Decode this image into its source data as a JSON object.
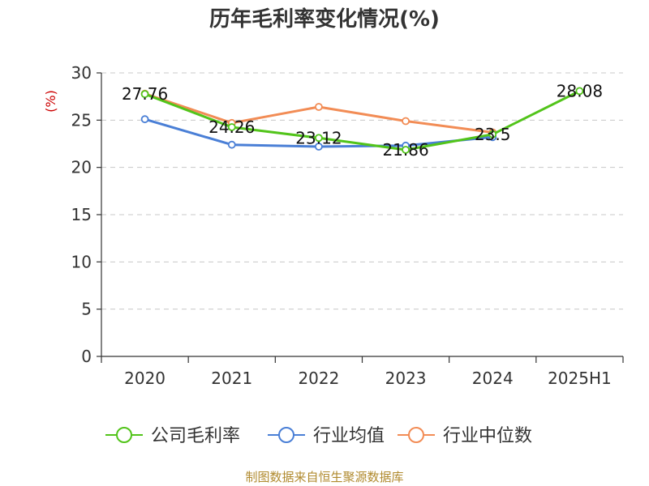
{
  "chart_data": {
    "type": "line",
    "title": "历年毛利率变化情况(%)",
    "ylabel": "(%)",
    "xlabel": "",
    "categories": [
      "2020",
      "2021",
      "2022",
      "2023",
      "2024",
      "2025H1"
    ],
    "ylim": [
      0,
      30
    ],
    "yticks": [
      0,
      5,
      10,
      15,
      20,
      25,
      30
    ],
    "grid": "horizontal dashed",
    "legend_position": "bottom",
    "series": [
      {
        "name": "公司毛利率",
        "color": "#52c41a",
        "values": [
          27.76,
          24.26,
          23.12,
          21.86,
          23.5,
          28.08
        ],
        "labels": [
          "27.76",
          "24.26",
          "23.12",
          "21.86",
          "23.5",
          "28.08"
        ]
      },
      {
        "name": "行业均值",
        "color": "#4a7fd6",
        "values": [
          25.1,
          22.4,
          22.2,
          22.3,
          23.2,
          null
        ]
      },
      {
        "name": "行业中位数",
        "color": "#f28c55",
        "values": [
          27.8,
          24.7,
          26.4,
          24.9,
          23.7,
          null
        ]
      }
    ]
  },
  "source": "制图数据来自恒生聚源数据库"
}
